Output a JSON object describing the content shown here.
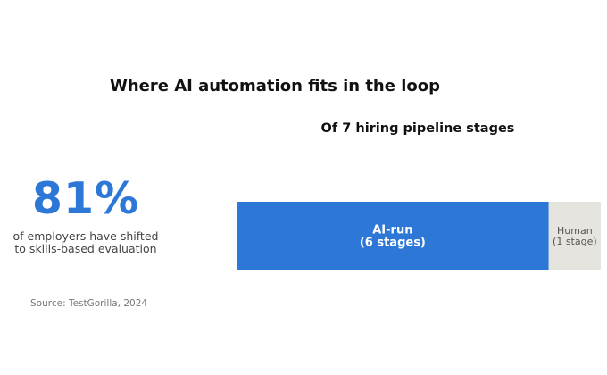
{
  "title": "Where AI automation fits in the loop",
  "stat": {
    "value": "81%",
    "caption_line1": "of employers have shifted",
    "caption_line2": "to skills-based evaluation",
    "color": "#2d78d6"
  },
  "source": "Source: TestGorilla, 2024",
  "chart_data": {
    "type": "bar",
    "orientation": "horizontal-stacked",
    "title": "Of 7 hiring pipeline stages",
    "total": 7,
    "segments": [
      {
        "label": "AI-run",
        "sublabel": "(6 stages)",
        "value": 6,
        "color": "#2d78d6",
        "text_color": "#ffffff",
        "bold": true
      },
      {
        "label": "Human",
        "sublabel": "(1 stage)",
        "value": 1,
        "color": "#e5e4de",
        "text_color": "#555555",
        "bold": false
      }
    ]
  }
}
